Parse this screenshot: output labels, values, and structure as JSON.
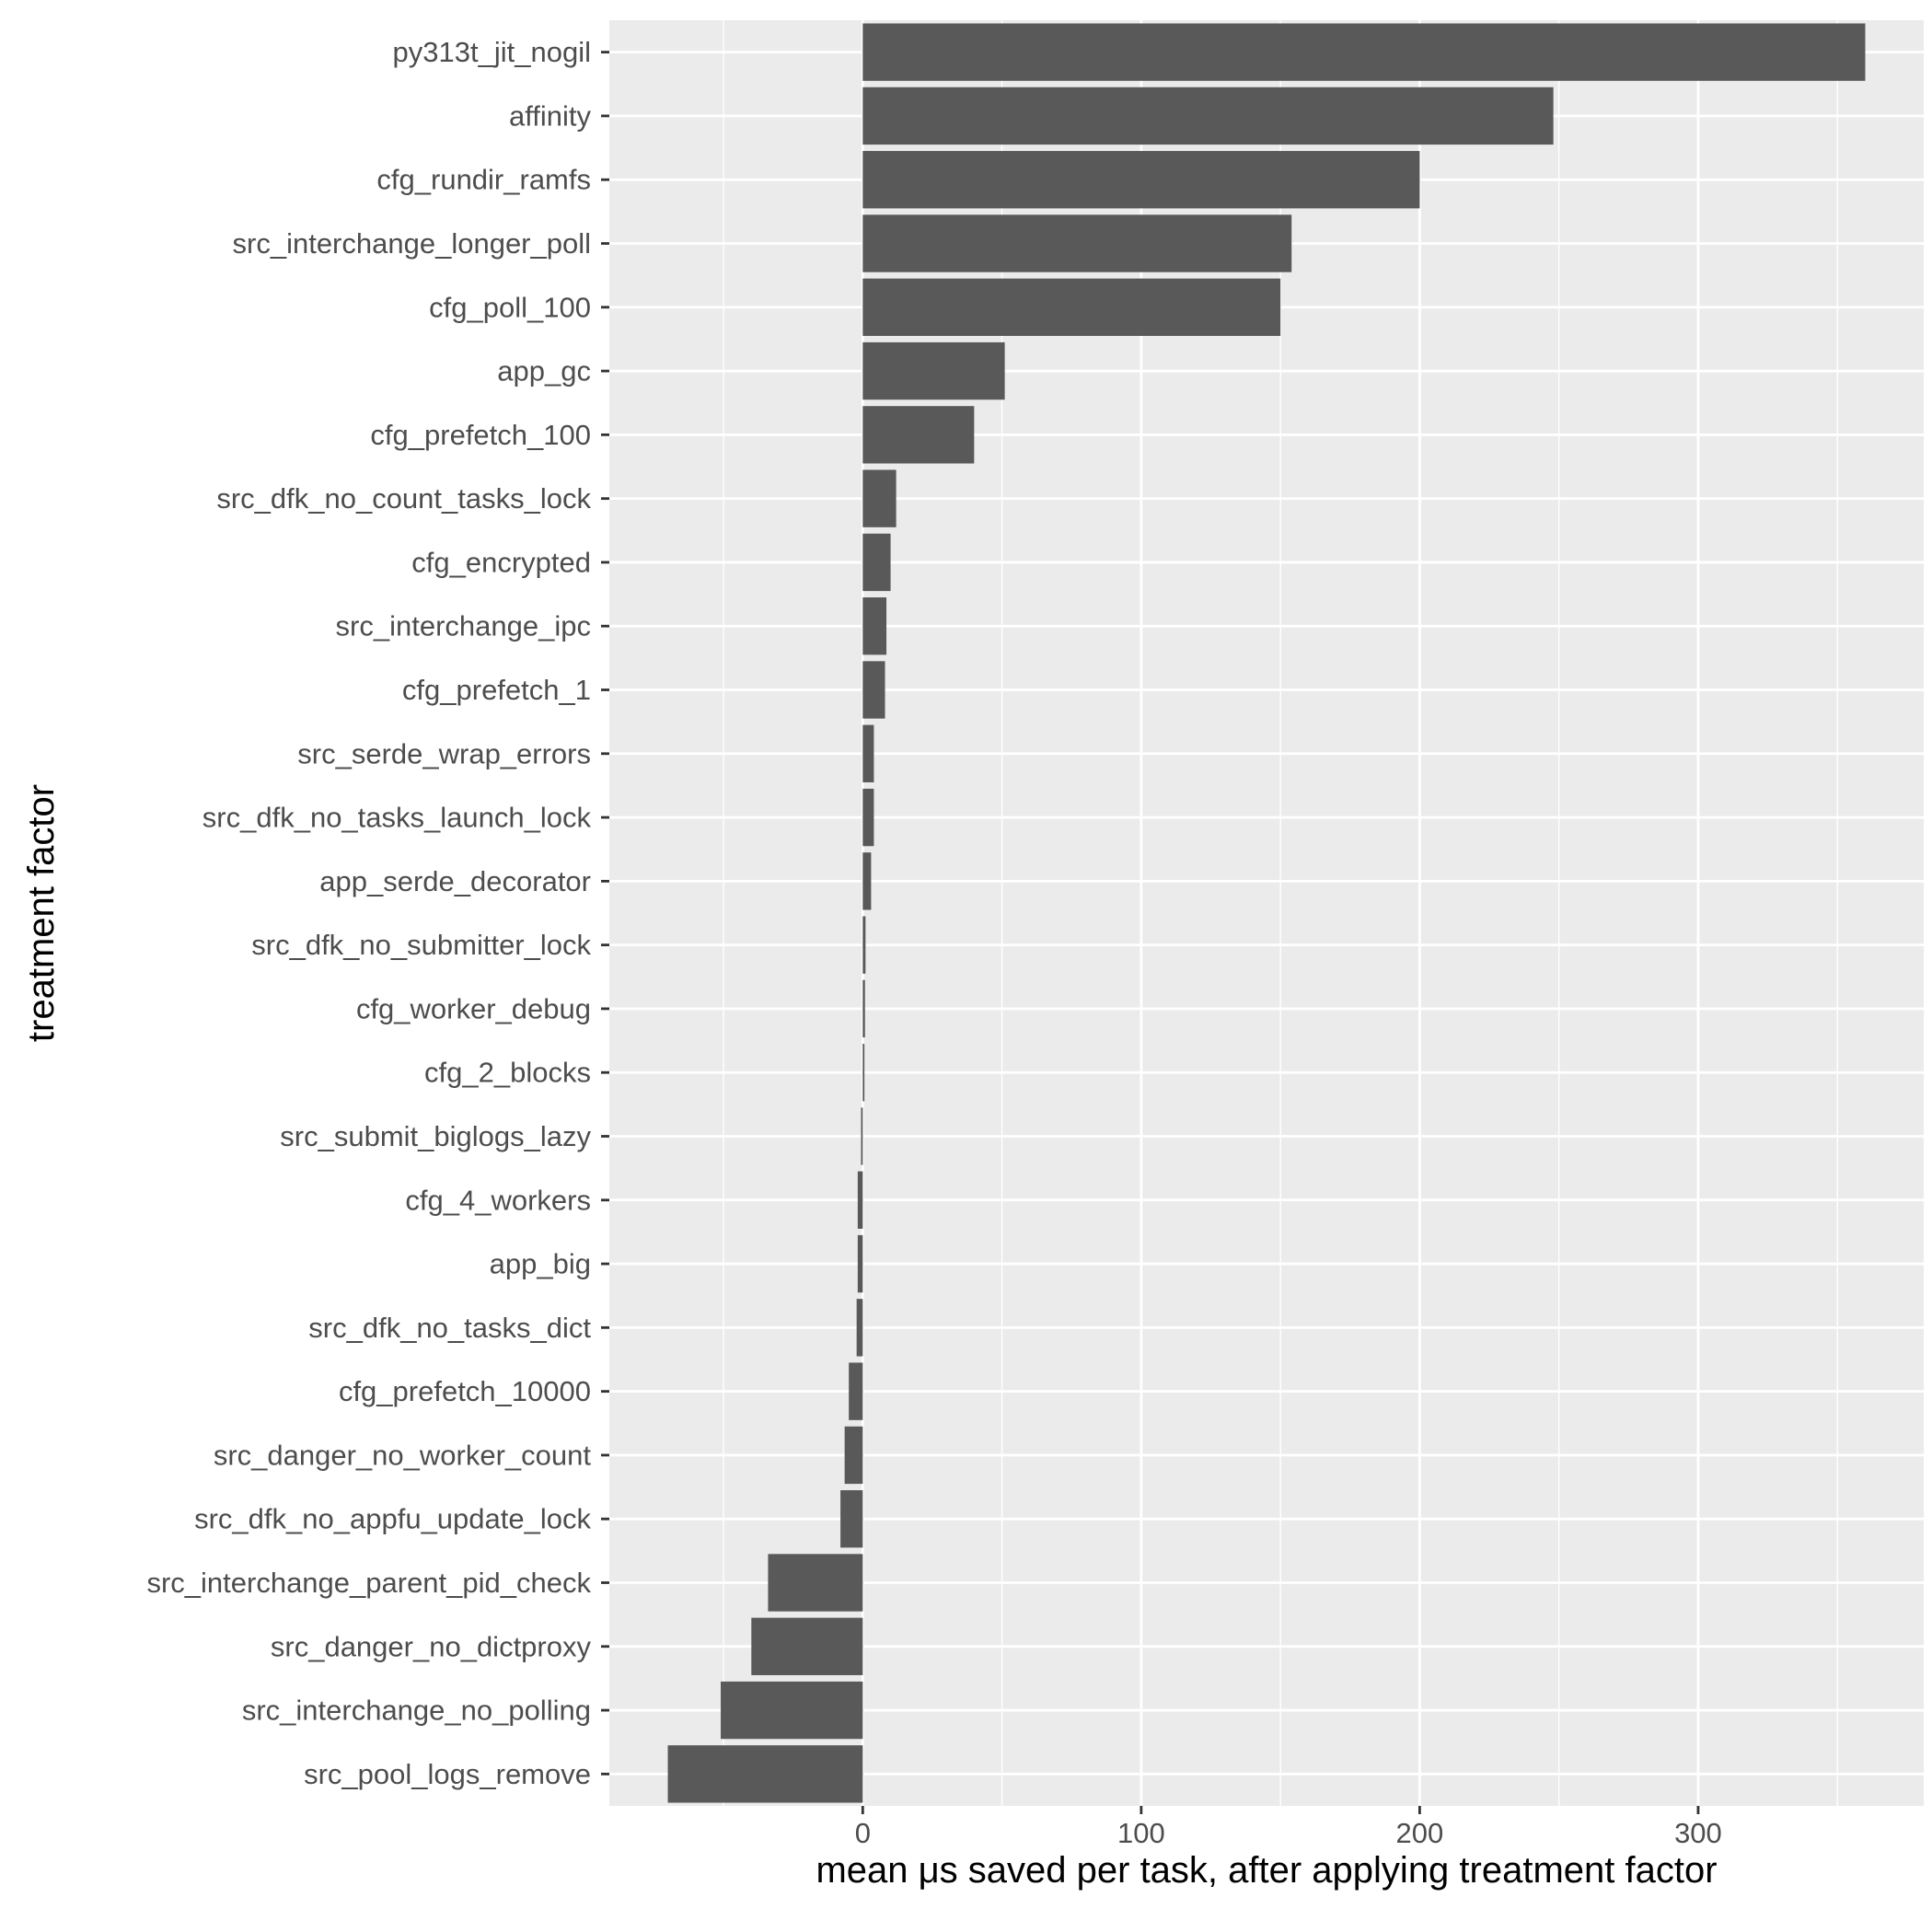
{
  "chart_data": {
    "type": "bar",
    "orientation": "horizontal",
    "title": "",
    "xlabel": "mean μs saved per task, after applying treatment factor",
    "ylabel": "treatment factor",
    "xlim": [
      -91,
      381
    ],
    "xticks": [
      0,
      100,
      200,
      300
    ],
    "grid": true,
    "bar_color": "#595959",
    "panel_color": "#ebebeb",
    "grid_color": "#ffffff",
    "categories": [
      "py313t_jit_nogil",
      "affinity",
      "cfg_rundir_ramfs",
      "src_interchange_longer_poll",
      "cfg_poll_100",
      "app_gc",
      "cfg_prefetch_100",
      "src_dfk_no_count_tasks_lock",
      "cfg_encrypted",
      "src_interchange_ipc",
      "cfg_prefetch_1",
      "src_serde_wrap_errors",
      "src_dfk_no_tasks_launch_lock",
      "app_serde_decorator",
      "src_dfk_no_submitter_lock",
      "cfg_worker_debug",
      "cfg_2_blocks",
      "src_submit_biglogs_lazy",
      "cfg_4_workers",
      "app_big",
      "src_dfk_no_tasks_dict",
      "cfg_prefetch_10000",
      "src_danger_no_worker_count",
      "src_dfk_no_appfu_update_lock",
      "src_interchange_parent_pid_check",
      "src_danger_no_dictproxy",
      "src_interchange_no_polling",
      "src_pool_logs_remove"
    ],
    "values": [
      360,
      248,
      200,
      154,
      150,
      51,
      40,
      12,
      10,
      8.5,
      8,
      4,
      4,
      3,
      1,
      0.8,
      0.6,
      -0.6,
      -1.8,
      -1.8,
      -2.2,
      -5,
      -6.5,
      -8,
      -34,
      -40,
      -51,
      -70
    ]
  }
}
